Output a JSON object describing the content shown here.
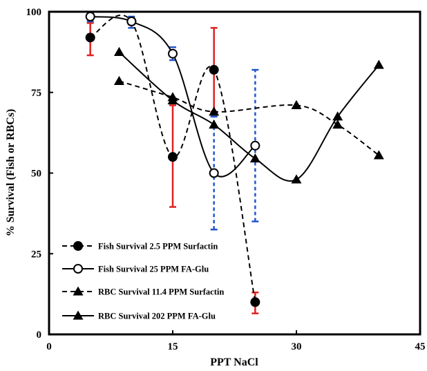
{
  "chart_data": {
    "type": "line",
    "title": "",
    "xlabel": "PPT NaCl",
    "ylabel": "% Survival  (Fish or RBCs)",
    "xlim": [
      0,
      45
    ],
    "ylim": [
      0,
      100
    ],
    "x_ticks": [
      "0",
      "15",
      "30",
      "45"
    ],
    "y_ticks": [
      "0",
      "25",
      "50",
      "75",
      "100"
    ],
    "grid": false,
    "legend_position": "bottom-left",
    "series": [
      {
        "name": "Fish Survival 2.5 PPM Surfactin",
        "line": "dashed",
        "marker": "circle-filled",
        "x": [
          5,
          10,
          15,
          20,
          25
        ],
        "y": [
          92,
          97,
          55,
          82,
          10
        ],
        "error_low": [
          86.5,
          96,
          39.5,
          69,
          6.5
        ],
        "error_high": [
          96.5,
          98,
          71,
          95,
          13
        ],
        "error_color": "#e02020",
        "error_style": "solid"
      },
      {
        "name": "Fish Survival 25 PPM FA-Glu",
        "line": "solid",
        "marker": "circle-open",
        "x": [
          5,
          10,
          15,
          20,
          25
        ],
        "y": [
          98.5,
          97,
          87,
          50,
          58.5
        ],
        "error_low": [
          97,
          95,
          85,
          32.5,
          35
        ],
        "error_high": [
          99.5,
          98.5,
          89,
          67.5,
          82
        ],
        "error_color": "#2255cc",
        "error_style": "dashed"
      },
      {
        "name": "RBC Survival 11.4 PPM Surfactin",
        "line": "dashed",
        "marker": "triangle-filled",
        "x": [
          8.5,
          15,
          20,
          30,
          35,
          40
        ],
        "y": [
          78.5,
          73.5,
          69,
          71,
          65,
          55.5
        ]
      },
      {
        "name": "RBC Survival 202 PPM FA-Glu",
        "line": "solid",
        "marker": "triangle-filled",
        "x": [
          8.5,
          15,
          20,
          25,
          30,
          35,
          40
        ],
        "y": [
          87.5,
          72.5,
          65,
          54.5,
          48,
          67.5,
          83.5
        ]
      }
    ]
  }
}
